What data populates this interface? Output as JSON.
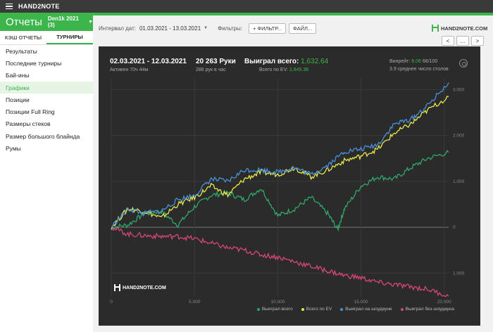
{
  "titlebar": {
    "app_name": "HAND2NOTE"
  },
  "appbar": {
    "title": "Отчеты",
    "database": "Den1k 2021 (3)"
  },
  "tabs": [
    {
      "label": "КЭШ ОТЧЕТЫ"
    },
    {
      "label": "ТУРНИРЫ"
    }
  ],
  "sidebar": {
    "items": [
      {
        "label": "Результаты"
      },
      {
        "label": "Последние турниры"
      },
      {
        "label": "Бай-ины"
      },
      {
        "label": "Графики"
      },
      {
        "label": "Позиции"
      },
      {
        "label": "Позиции Full Ring"
      },
      {
        "label": "Размеры стеков"
      },
      {
        "label": "Размер большого блайнда"
      },
      {
        "label": "Румы"
      }
    ]
  },
  "toolbar": {
    "date_label": "Интервал дат:",
    "date_value": "01.03.2021 - 13.03.2021",
    "filters_label": "Фильтры:",
    "filter_button": "+ ФИЛЬТР...",
    "file_button": "ФАЙЛ..."
  },
  "top_logo": "HAND2NOTE.COM",
  "nav": {
    "prev": "<",
    "more": "...",
    "next": ">"
  },
  "panel": {
    "date_range": "02.03.2021 - 12.03.2021",
    "active": "Активен 70ч 44м",
    "hands": "20 263 Руки",
    "hands_per_hour": "286 рук в час",
    "won_label": "Выиграл всего:",
    "won_value": "1,632.64",
    "ev_label": "Всего по EV:",
    "ev_value": "2,845.36",
    "winrate_label": "Винрейт:",
    "winrate_value": "8.06",
    "winrate_unit": "66/100",
    "tables": "3.9 среднее число столов",
    "logo": "HAND2NOTE.COM"
  },
  "chart_data": {
    "type": "line",
    "x_ticks": [
      0,
      5000,
      10000,
      15000,
      20000
    ],
    "x_tick_labels": [
      "0",
      "5.000",
      "10.000",
      "15.000",
      "20.000"
    ],
    "y_ticks": [
      -1000,
      0,
      1000,
      2000,
      3000
    ],
    "y_tick_labels": [
      "1.000",
      "0",
      "1.000",
      "2.000",
      "3.000"
    ],
    "xlim": [
      0,
      20263
    ],
    "ylim": [
      -1500,
      3250
    ],
    "grid": true,
    "legend_position": "bottom-right",
    "series": [
      {
        "name": "Выиграл всего",
        "color": "#2ea86b",
        "x": [
          0,
          1000,
          2000,
          3000,
          4000,
          5000,
          6000,
          7000,
          8000,
          9000,
          10000,
          11000,
          12000,
          13000,
          13600,
          14000,
          15000,
          16000,
          17000,
          18000,
          19000,
          20263
        ],
        "y": [
          0,
          50,
          300,
          350,
          50,
          450,
          700,
          750,
          600,
          850,
          250,
          400,
          650,
          300,
          -50,
          400,
          900,
          1100,
          1050,
          1300,
          1500,
          1632
        ]
      },
      {
        "name": "Всего по EV",
        "color": "#e8e84a",
        "x": [
          0,
          1000,
          2000,
          3000,
          4000,
          5000,
          6000,
          7000,
          8000,
          9000,
          10000,
          11000,
          12000,
          13000,
          14000,
          15000,
          16000,
          17000,
          18000,
          19000,
          20263
        ],
        "y": [
          0,
          400,
          350,
          200,
          500,
          650,
          900,
          700,
          1050,
          1200,
          1150,
          1300,
          1100,
          1250,
          1450,
          1550,
          1700,
          2050,
          2250,
          2550,
          2845
        ]
      },
      {
        "name": "Выиграл на шоудауне",
        "color": "#4a90d9",
        "x": [
          0,
          1000,
          2000,
          3000,
          4000,
          5000,
          6000,
          7000,
          8000,
          9000,
          10000,
          11000,
          12000,
          13000,
          14000,
          15000,
          16000,
          17000,
          18000,
          19000,
          20263
        ],
        "y": [
          0,
          400,
          300,
          350,
          600,
          700,
          1050,
          1000,
          1250,
          1250,
          1200,
          1300,
          1150,
          1350,
          1650,
          1700,
          1800,
          2250,
          2350,
          2650,
          3150
        ]
      },
      {
        "name": "Выиграл без шоудауна",
        "color": "#d9457a",
        "x": [
          0,
          1000,
          2000,
          3000,
          4000,
          5000,
          6000,
          7000,
          8000,
          9000,
          10000,
          11000,
          12000,
          13000,
          14000,
          15000,
          16000,
          17000,
          18000,
          19000,
          20263
        ],
        "y": [
          0,
          -150,
          -180,
          -200,
          -200,
          -250,
          -350,
          -450,
          -500,
          -600,
          -650,
          -750,
          -850,
          -950,
          -1050,
          -1100,
          -1200,
          -1250,
          -1300,
          -1350,
          -1500
        ]
      }
    ]
  }
}
